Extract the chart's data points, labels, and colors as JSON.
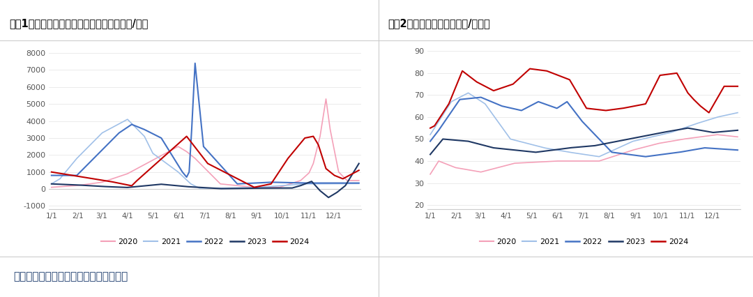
{
  "chart1_title": "图表1：海南胶水制浓乳和制全乳的价差（元/吨）",
  "chart2_title": "图表2：泰国原料胶水（泰铢/公斤）",
  "footer": "数据来源：钢联，广发期货发展研究中心",
  "chart1_yticks": [
    -1000,
    0,
    1000,
    2000,
    3000,
    4000,
    5000,
    6000,
    7000,
    8000
  ],
  "chart1_ylim": [
    -1200,
    8500
  ],
  "chart2_yticks": [
    20,
    30,
    40,
    50,
    60,
    70,
    80,
    90
  ],
  "chart2_ylim": [
    18,
    93
  ],
  "xtick_labels": [
    "1/1",
    "2/1",
    "3/1",
    "4/1",
    "5/1",
    "6/1",
    "7/1",
    "8/1",
    "9/1",
    "10/1",
    "11/1",
    "12/1"
  ],
  "legend_labels": [
    "2020",
    "2021",
    "2022",
    "2023",
    "2024"
  ],
  "colors_2020": "#f4a0b8",
  "colors_2021": "#a0c0e8",
  "colors_2022": "#4472c4",
  "colors_2023": "#1f3864",
  "colors_2024": "#c00000",
  "background_color": "#ffffff",
  "title_bg": "#f0f0f0",
  "border_color": "#cccccc",
  "lw_thin": 1.2,
  "lw_thick": 1.5
}
